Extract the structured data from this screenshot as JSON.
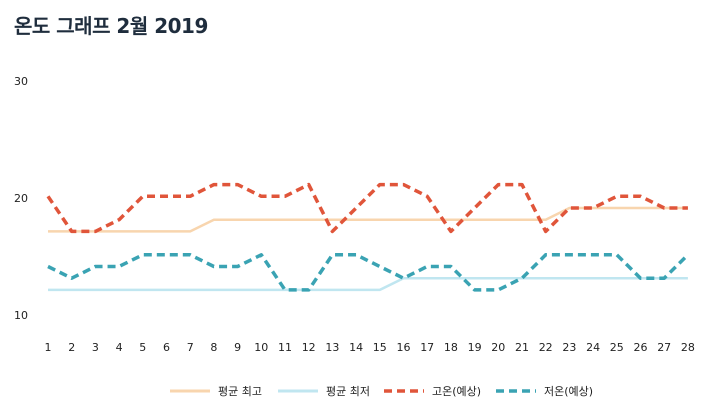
{
  "chart_data": {
    "type": "line",
    "title": "온도 그래프 2월 2019",
    "xlabel": "",
    "ylabel": "",
    "categories": [
      1,
      2,
      3,
      4,
      5,
      6,
      7,
      8,
      9,
      10,
      11,
      12,
      13,
      14,
      15,
      16,
      17,
      18,
      19,
      20,
      21,
      22,
      23,
      24,
      25,
      26,
      27,
      28
    ],
    "y_ticks": [
      10,
      20,
      30
    ],
    "ylim": [
      10,
      30
    ],
    "grid": false,
    "legend_position": "bottom",
    "series": [
      {
        "name": "평균 최고",
        "style": "solid",
        "color": "#f8d5ae",
        "values": [
          18,
          18,
          18,
          18,
          18,
          18,
          18,
          19,
          19,
          19,
          19,
          19,
          19,
          19,
          19,
          19,
          19,
          19,
          19,
          19,
          19,
          19,
          20,
          20,
          20,
          20,
          20,
          20
        ]
      },
      {
        "name": "평균 최저",
        "style": "solid",
        "color": "#c0e6f0",
        "values": [
          13,
          13,
          13,
          13,
          13,
          13,
          13,
          13,
          13,
          13,
          13,
          13,
          13,
          13,
          13,
          14,
          14,
          14,
          14,
          14,
          14,
          14,
          14,
          14,
          14,
          14,
          14,
          14
        ]
      },
      {
        "name": "고온(예상)",
        "style": "dashed",
        "color": "#e0553a",
        "values": [
          21,
          18,
          18,
          19,
          21,
          21,
          21,
          22,
          22,
          21,
          21,
          22,
          18,
          20,
          22,
          22,
          21,
          18,
          20,
          22,
          22,
          18,
          20,
          20,
          21,
          21,
          20,
          20
        ]
      },
      {
        "name": "저온(예상)",
        "style": "dashed",
        "color": "#3aa3b3",
        "values": [
          15,
          14,
          15,
          15,
          16,
          16,
          16,
          15,
          15,
          16,
          13,
          13,
          16,
          16,
          15,
          14,
          15,
          15,
          13,
          13,
          14,
          16,
          16,
          16,
          16,
          14,
          14,
          16
        ]
      }
    ]
  }
}
